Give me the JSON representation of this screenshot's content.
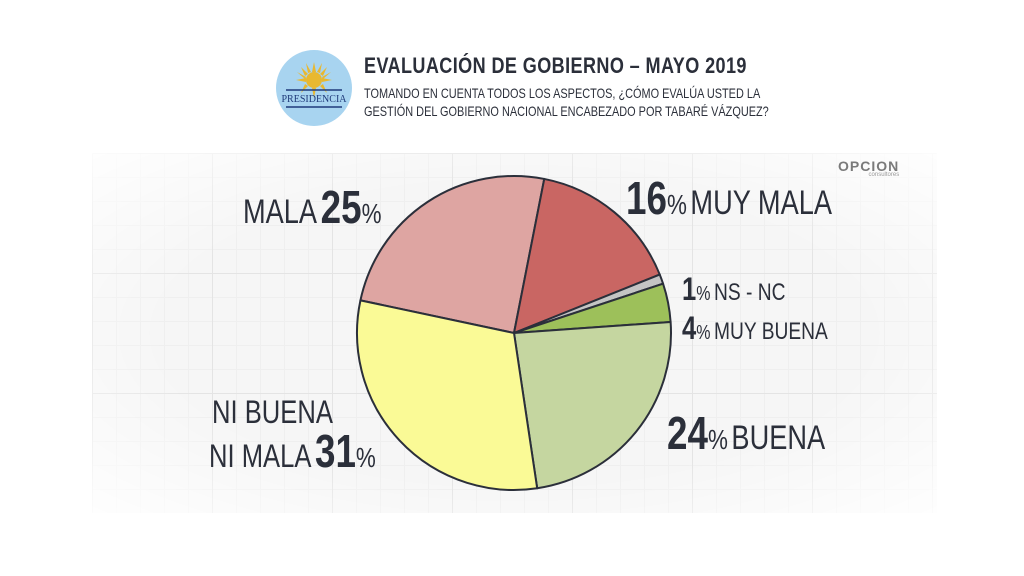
{
  "header": {
    "logo_text": "PRESIDENCIA",
    "title": "EVALUACIÓN DE GOBIERNO – MAYO 2019",
    "subtitle": "TOMANDO EN CUENTA TODOS LOS ASPECTOS, ¿CÓMO EVALÚA USTED LA GESTIÓN DEL GOBIERNO NACIONAL ENCABEZADO POR TABARÉ VÁZQUEZ?"
  },
  "brand": {
    "name": "OPCION",
    "sub": "consultores"
  },
  "labels": {
    "mala": {
      "text": "MALA",
      "value": "25",
      "sign": "%"
    },
    "muy_mala": {
      "value": "16",
      "sign": "%",
      "text": "MUY MALA"
    },
    "ns_nc": {
      "value": "1",
      "sign": "%",
      "text": "NS - NC"
    },
    "muy_buena": {
      "value": "4",
      "sign": "%",
      "text": "MUY BUENA"
    },
    "buena": {
      "value": "24",
      "sign": "%",
      "text": "BUENA"
    },
    "ni_buena_line1": "NI BUENA",
    "ni_buena_line2": "NI MALA",
    "ni_buena": {
      "value": "31",
      "sign": "%"
    }
  },
  "chart_data": {
    "type": "pie",
    "title": "EVALUACIÓN DE GOBIERNO – MAYO 2019",
    "start_angle_deg": -168,
    "direction": "clockwise",
    "slices": [
      {
        "label": "MALA",
        "value": 25,
        "color": "#dea5a2"
      },
      {
        "label": "MUY MALA",
        "value": 16,
        "color": "#c96663"
      },
      {
        "label": "NS - NC",
        "value": 1,
        "color": "#c4c4c4"
      },
      {
        "label": "MUY BUENA",
        "value": 4,
        "color": "#9dc05a"
      },
      {
        "label": "BUENA",
        "value": 24,
        "color": "#c5d6a0"
      },
      {
        "label": "NI BUENA NI MALA",
        "value": 31,
        "color": "#fafa96"
      }
    ]
  }
}
